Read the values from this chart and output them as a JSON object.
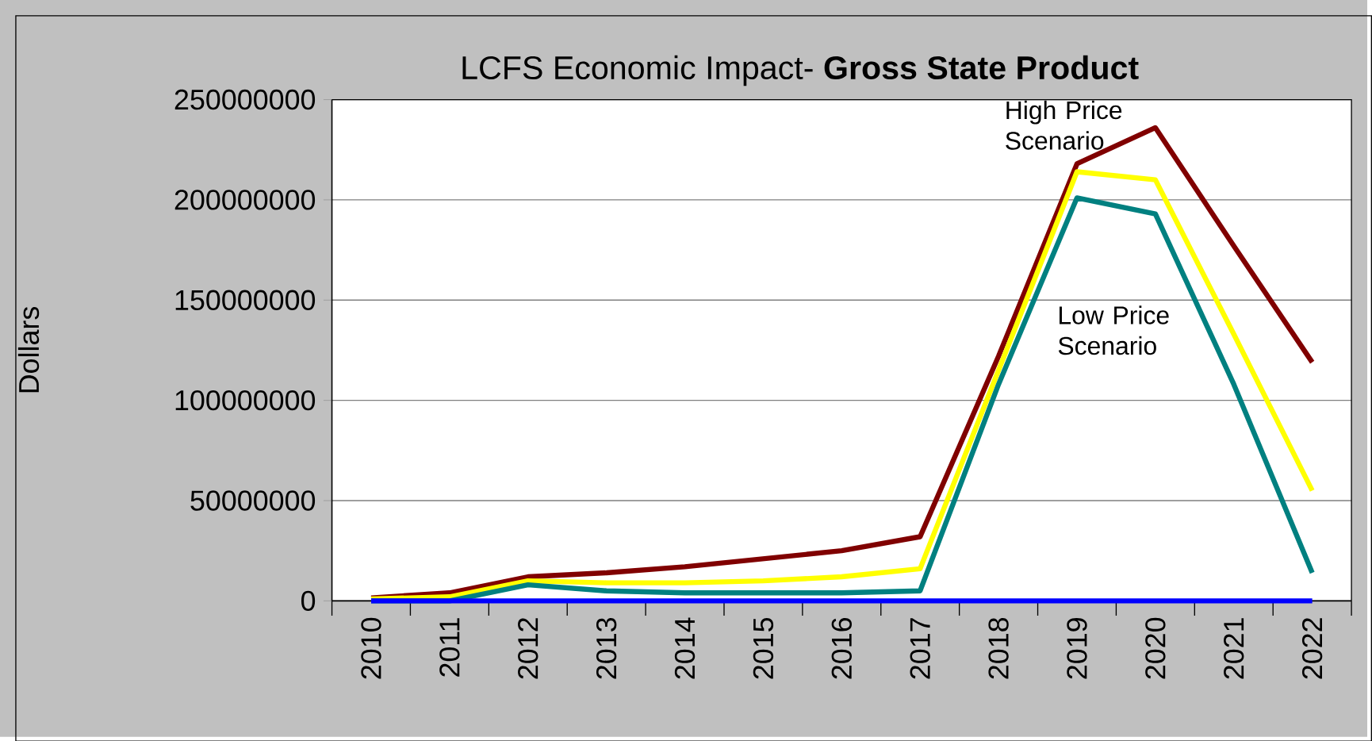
{
  "chart_data": {
    "type": "line",
    "title": "LCFS Economic Impact- **Gross State Product**",
    "ylabel": "Dollars",
    "categories": [
      "2010",
      "2011",
      "2012",
      "2013",
      "2014",
      "2015",
      "2016",
      "2017",
      "2018",
      "2019",
      "2020",
      "2021",
      "2022"
    ],
    "series": [
      {
        "name": "High Price Scenario",
        "color": "#800000",
        "values": [
          1500000,
          4000000,
          12000000,
          14000000,
          17000000,
          21000000,
          25000000,
          32000000,
          122000000,
          218000000,
          236000000,
          177000000,
          119000000
        ]
      },
      {
        "color": "#ffff00",
        "values": [
          1000000,
          2000000,
          10000000,
          9000000,
          9000000,
          10000000,
          12000000,
          16000000,
          115000000,
          214000000,
          210000000,
          133000000,
          55000000
        ]
      },
      {
        "name": "Low Price Scenario",
        "color": "#008080",
        "values": [
          0,
          0,
          8000000,
          5000000,
          4000000,
          4000000,
          4000000,
          5000000,
          108000000,
          201000000,
          193000000,
          108000000,
          14000000
        ]
      },
      {
        "color": "#0000ff",
        "values": [
          0,
          0,
          0,
          0,
          0,
          0,
          0,
          0,
          0,
          0,
          0,
          0,
          0
        ]
      }
    ],
    "ylim": [
      0,
      250000000
    ],
    "yticks": [
      0,
      50000000,
      100000000,
      150000000,
      200000000,
      250000000
    ],
    "grid": "y"
  }
}
